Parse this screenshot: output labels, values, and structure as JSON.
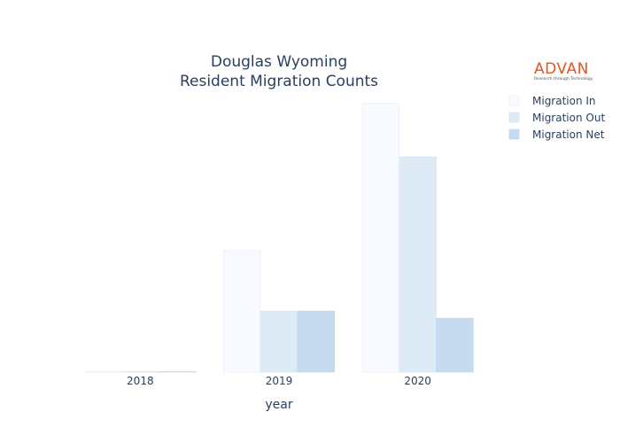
{
  "chart_data": {
    "type": "bar",
    "title": [
      "Douglas Wyoming",
      "Resident Migration Counts"
    ],
    "xlabel": "year",
    "ylabel": "",
    "categories": [
      "2018",
      "2019",
      "2020"
    ],
    "series": [
      {
        "name": "Migration In",
        "values": [
          0,
          170,
          375
        ],
        "color": "#f7fafe",
        "stroke": "#e8eef7"
      },
      {
        "name": "Migration Out",
        "values": [
          0,
          85,
          300
        ],
        "color": "#deeaf6",
        "stroke": "#d6e3f1"
      },
      {
        "name": "Migration Net",
        "values": [
          0,
          85,
          75
        ],
        "color": "#c6dbef",
        "stroke": "#bcd3ea"
      }
    ],
    "ylim": [
      0,
      395
    ],
    "grid": false,
    "legend_position": "top-right"
  },
  "logo": {
    "name": "ADVAN",
    "tagline": "Research through Technology"
  }
}
